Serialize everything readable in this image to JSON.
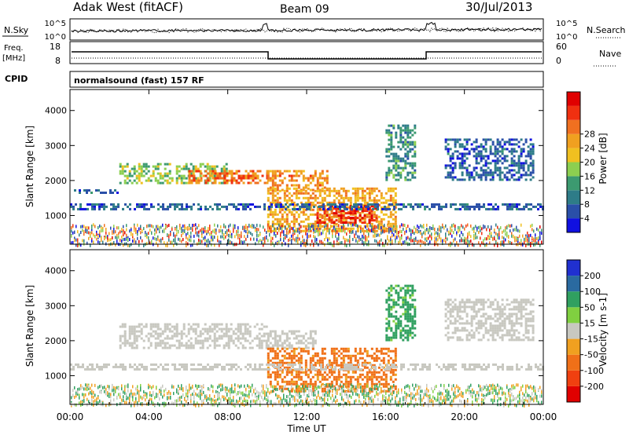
{
  "header": {
    "station": "Adak West (fitACF)",
    "beam": "Beam 09",
    "date": "30/Jul/2013"
  },
  "top_panels": {
    "nsky_label": "N.Sky",
    "nsky_ticks": [
      "10^5",
      "10^0"
    ],
    "nsearch_label": "N.Search",
    "nsearch_ticks": [
      "10^5",
      "10^0"
    ],
    "freq_label": "Freq.",
    "freq_unit": "[MHz]",
    "freq_ticks": [
      "18",
      "8"
    ],
    "nave_label": "Nave",
    "nave_ticks": [
      "60",
      "0"
    ],
    "cpid_label": "CPID",
    "cpid_text": "normalsound (fast) 157 RF"
  },
  "chart_data": [
    {
      "type": "heatmap",
      "name": "power",
      "xlabel": "",
      "ylabel": "Slant Range [km]",
      "xlim": [
        0,
        24
      ],
      "ylim": [
        180,
        4600
      ],
      "y_ticks": [
        "1000",
        "2000",
        "3000",
        "4000"
      ],
      "colorbar": {
        "label": "Power [dB]",
        "ticks": [
          "4",
          "8",
          "12",
          "16",
          "20",
          "24",
          "28"
        ],
        "colors": [
          "#1010e0",
          "#2a4fa8",
          "#2e7c88",
          "#3c9a70",
          "#8ccf50",
          "#f0c020",
          "#f0a020",
          "#f07020",
          "#f03010",
          "#e00000"
        ]
      },
      "echo_bands": [
        {
          "t_start": 0.2,
          "t_end": 2.5,
          "range_start": 1650,
          "range_end": 1750,
          "power": 6
        },
        {
          "t_start": 2.5,
          "t_end": 8.0,
          "range_start": 1900,
          "range_end": 2500,
          "power": 14
        },
        {
          "t_start": 6.0,
          "t_end": 10.0,
          "range_start": 1900,
          "range_end": 2300,
          "power": 24
        },
        {
          "t_start": 10.0,
          "t_end": 13.0,
          "range_start": 1700,
          "range_end": 2300,
          "power": 22
        },
        {
          "t_start": 10.0,
          "t_end": 16.5,
          "range_start": 550,
          "range_end": 1800,
          "power": 20
        },
        {
          "t_start": 12.5,
          "t_end": 15.5,
          "range_start": 800,
          "range_end": 1300,
          "power": 28
        },
        {
          "t_start": 0.0,
          "t_end": 24.0,
          "range_start": 1150,
          "range_end": 1350,
          "power": 6
        },
        {
          "t_start": 16.0,
          "t_end": 17.5,
          "range_start": 2000,
          "range_end": 3600,
          "power": 10
        },
        {
          "t_start": 19.0,
          "t_end": 23.5,
          "range_start": 2000,
          "range_end": 3200,
          "power": 6
        }
      ]
    },
    {
      "type": "heatmap",
      "name": "velocity",
      "xlabel": "Time UT",
      "ylabel": "Slant Range [km]",
      "xlim": [
        0,
        24
      ],
      "ylim": [
        180,
        4600
      ],
      "x_ticks": [
        "00:00",
        "04:00",
        "08:00",
        "12:00",
        "16:00",
        "20:00",
        "00:00"
      ],
      "y_ticks": [
        "1000",
        "2000",
        "3000",
        "4000"
      ],
      "colorbar": {
        "label": "Velocity [m s-1]",
        "ticks": [
          "200",
          "100",
          "50",
          "15",
          "-15",
          "-50",
          "-100",
          "-200"
        ],
        "colors": [
          "#2030d0",
          "#2a6aa0",
          "#30a060",
          "#80d040",
          "#c8c8c0",
          "#f0a020",
          "#f07018",
          "#f04010",
          "#e00000"
        ]
      },
      "echo_bands": [
        {
          "t_start": 2.5,
          "t_end": 10.0,
          "range_start": 1800,
          "range_end": 2500,
          "velocity": 0
        },
        {
          "t_start": 10.0,
          "t_end": 12.5,
          "range_start": 1800,
          "range_end": 2300,
          "velocity": 0
        },
        {
          "t_start": 10.0,
          "t_end": 16.5,
          "range_start": 550,
          "range_end": 1800,
          "velocity": -60
        },
        {
          "t_start": 0.0,
          "t_end": 24.0,
          "range_start": 1150,
          "range_end": 1350,
          "velocity": 0
        },
        {
          "t_start": 16.0,
          "t_end": 17.5,
          "range_start": 2000,
          "range_end": 3600,
          "velocity": 40
        },
        {
          "t_start": 19.0,
          "t_end": 23.5,
          "range_start": 2000,
          "range_end": 3200,
          "velocity": 0
        }
      ]
    }
  ]
}
